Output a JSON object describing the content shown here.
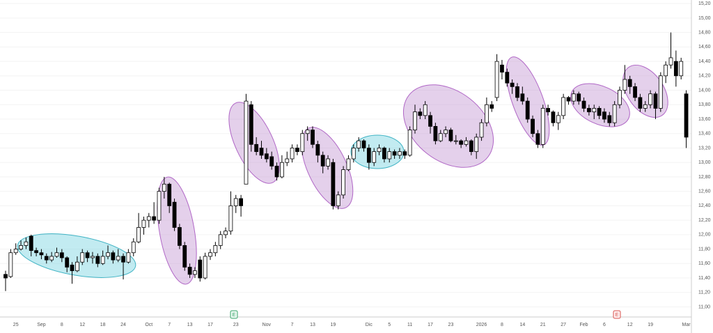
{
  "chart_data": {
    "type": "candlestick",
    "categories": [
      null,
      null,
      "25",
      null,
      null,
      null,
      null,
      "Sep",
      null,
      null,
      null,
      "8",
      null,
      null,
      null,
      "12",
      null,
      null,
      null,
      "18",
      null,
      null,
      null,
      "24",
      null,
      null,
      null,
      null,
      "Oct",
      null,
      null,
      null,
      "7",
      null,
      null,
      null,
      "13",
      null,
      null,
      null,
      "17",
      null,
      null,
      null,
      null,
      "23",
      null,
      null,
      null,
      null,
      null,
      "Nov",
      null,
      null,
      null,
      null,
      "7",
      null,
      null,
      null,
      "13",
      null,
      null,
      null,
      "19",
      null,
      null,
      null,
      null,
      null,
      null,
      "Dic",
      null,
      null,
      null,
      "5",
      null,
      null,
      null,
      "11",
      null,
      null,
      null,
      "17",
      null,
      null,
      null,
      "23",
      null,
      null,
      null,
      null,
      null,
      "2026",
      null,
      null,
      null,
      "8",
      null,
      null,
      null,
      "14",
      null,
      null,
      null,
      "21",
      null,
      null,
      null,
      "27",
      null,
      null,
      null,
      "Feb",
      null,
      null,
      null,
      "6",
      null,
      null,
      null,
      null,
      "12",
      null,
      null,
      null,
      "19",
      null,
      null,
      null,
      null,
      null,
      null,
      "Mar"
    ],
    "series": [
      {
        "up_color": "#ffffff",
        "down_color": "#000000",
        "border_color": "#000000",
        "values": [
          [
            11.45,
            11.5,
            11.22,
            11.4
          ],
          [
            11.42,
            11.8,
            11.4,
            11.75
          ],
          [
            11.75,
            11.88,
            11.72,
            11.8
          ],
          [
            11.8,
            11.92,
            11.78,
            11.85
          ],
          [
            11.85,
            11.96,
            11.8,
            11.9
          ],
          [
            11.98,
            12.0,
            11.7,
            11.78
          ],
          [
            11.78,
            11.82,
            11.7,
            11.75
          ],
          [
            11.75,
            11.8,
            11.66,
            11.72
          ],
          [
            11.7,
            11.74,
            11.6,
            11.65
          ],
          [
            11.65,
            11.76,
            11.62,
            11.7
          ],
          [
            11.7,
            11.82,
            11.68,
            11.75
          ],
          [
            11.75,
            11.8,
            11.62,
            11.68
          ],
          [
            11.68,
            11.7,
            11.48,
            11.55
          ],
          [
            11.58,
            11.62,
            11.32,
            11.5
          ],
          [
            11.5,
            11.7,
            11.48,
            11.62
          ],
          [
            11.62,
            11.8,
            11.58,
            11.75
          ],
          [
            11.75,
            11.78,
            11.62,
            11.68
          ],
          [
            11.68,
            11.76,
            11.6,
            11.7
          ],
          [
            11.7,
            11.74,
            11.55,
            11.6
          ],
          [
            11.6,
            11.78,
            11.58,
            11.7
          ],
          [
            11.7,
            11.85,
            11.66,
            11.75
          ],
          [
            11.75,
            11.78,
            11.6,
            11.65
          ],
          [
            11.65,
            11.8,
            11.62,
            11.7
          ],
          [
            11.7,
            11.74,
            11.38,
            11.62
          ],
          [
            11.62,
            11.8,
            11.6,
            11.75
          ],
          [
            11.75,
            11.95,
            11.7,
            11.9
          ],
          [
            11.9,
            12.3,
            11.88,
            12.1
          ],
          [
            12.1,
            12.25,
            12.0,
            12.2
          ],
          [
            12.2,
            12.3,
            12.1,
            12.25
          ],
          [
            12.25,
            12.45,
            12.15,
            12.2
          ],
          [
            12.2,
            12.65,
            12.15,
            12.6
          ],
          [
            12.6,
            12.8,
            12.5,
            12.7
          ],
          [
            12.7,
            12.72,
            12.3,
            12.4
          ],
          [
            12.45,
            12.5,
            12.05,
            12.1
          ],
          [
            12.1,
            12.15,
            11.8,
            11.85
          ],
          [
            11.85,
            11.9,
            11.5,
            11.55
          ],
          [
            11.55,
            11.6,
            11.4,
            11.45
          ],
          [
            11.45,
            11.55,
            11.4,
            11.5
          ],
          [
            11.65,
            11.7,
            11.35,
            11.4
          ],
          [
            11.4,
            11.75,
            11.38,
            11.7
          ],
          [
            11.7,
            11.8,
            11.65,
            11.75
          ],
          [
            11.75,
            11.9,
            11.7,
            11.85
          ],
          [
            11.85,
            12.05,
            11.8,
            12.0
          ],
          [
            12.0,
            12.1,
            11.95,
            12.05
          ],
          [
            12.05,
            12.6,
            12.0,
            12.4
          ],
          [
            12.4,
            12.55,
            12.3,
            12.5
          ],
          [
            12.5,
            12.55,
            12.25,
            12.4
          ],
          [
            12.7,
            13.95,
            12.7,
            13.85
          ],
          [
            13.8,
            13.85,
            13.15,
            13.25
          ],
          [
            13.25,
            13.35,
            13.1,
            13.15
          ],
          [
            13.2,
            13.3,
            13.05,
            13.1
          ],
          [
            13.12,
            13.2,
            13.0,
            13.05
          ],
          [
            13.08,
            13.15,
            12.9,
            12.95
          ],
          [
            12.95,
            13.0,
            12.75,
            12.8
          ],
          [
            12.8,
            13.1,
            12.78,
            13.0
          ],
          [
            13.0,
            13.15,
            12.95,
            13.05
          ],
          [
            13.05,
            13.25,
            13.0,
            13.2
          ],
          [
            13.2,
            13.25,
            13.1,
            13.15
          ],
          [
            13.15,
            13.45,
            13.1,
            13.4
          ],
          [
            13.4,
            13.5,
            13.3,
            13.45
          ],
          [
            13.45,
            13.5,
            13.2,
            13.25
          ],
          [
            13.25,
            13.3,
            13.0,
            13.1
          ],
          [
            13.1,
            13.15,
            12.85,
            12.95
          ],
          [
            12.95,
            13.1,
            12.9,
            13.05
          ],
          [
            13.0,
            13.05,
            12.35,
            12.4
          ],
          [
            12.4,
            12.6,
            12.35,
            12.55
          ],
          [
            12.55,
            12.95,
            12.5,
            12.9
          ],
          [
            12.9,
            13.1,
            12.88,
            13.05
          ],
          [
            13.05,
            13.25,
            13.0,
            13.2
          ],
          [
            13.2,
            13.35,
            13.15,
            13.3
          ],
          [
            13.3,
            13.32,
            13.15,
            13.2
          ],
          [
            13.2,
            13.25,
            12.9,
            13.0
          ],
          [
            13.0,
            13.2,
            12.95,
            13.15
          ],
          [
            13.15,
            13.25,
            13.1,
            13.2
          ],
          [
            13.2,
            13.22,
            13.0,
            13.05
          ],
          [
            13.05,
            13.2,
            13.0,
            13.15
          ],
          [
            13.15,
            13.18,
            13.05,
            13.1
          ],
          [
            13.1,
            13.2,
            13.05,
            13.15
          ],
          [
            13.15,
            13.18,
            13.05,
            13.1
          ],
          [
            13.1,
            13.5,
            13.08,
            13.45
          ],
          [
            13.45,
            13.8,
            13.4,
            13.7
          ],
          [
            13.7,
            13.75,
            13.6,
            13.65
          ],
          [
            13.65,
            13.85,
            13.6,
            13.8
          ],
          [
            13.65,
            13.7,
            13.4,
            13.5
          ],
          [
            13.5,
            13.55,
            13.25,
            13.3
          ],
          [
            13.3,
            13.45,
            13.28,
            13.4
          ],
          [
            13.4,
            13.5,
            13.35,
            13.45
          ],
          [
            13.45,
            13.48,
            13.28,
            13.3
          ],
          [
            13.3,
            13.38,
            13.25,
            13.3
          ],
          [
            13.3,
            13.32,
            13.2,
            13.25
          ],
          [
            13.25,
            13.35,
            13.22,
            13.3
          ],
          [
            13.3,
            13.32,
            13.1,
            13.15
          ],
          [
            13.15,
            13.4,
            13.05,
            13.35
          ],
          [
            13.35,
            13.6,
            13.3,
            13.55
          ],
          [
            13.55,
            13.9,
            13.5,
            13.8
          ],
          [
            13.8,
            13.85,
            13.7,
            13.75
          ],
          [
            13.9,
            14.5,
            13.85,
            14.4
          ],
          [
            14.35,
            14.42,
            14.15,
            14.25
          ],
          [
            14.25,
            14.3,
            14.05,
            14.1
          ],
          [
            14.1,
            14.15,
            13.95,
            14.05
          ],
          [
            14.05,
            14.1,
            13.85,
            13.9
          ],
          [
            13.95,
            14.05,
            13.8,
            13.85
          ],
          [
            13.85,
            13.9,
            13.55,
            13.6
          ],
          [
            13.6,
            13.65,
            13.35,
            13.4
          ],
          [
            13.4,
            13.45,
            13.2,
            13.25
          ],
          [
            13.25,
            13.8,
            13.2,
            13.75
          ],
          [
            13.75,
            13.8,
            13.65,
            13.7
          ],
          [
            13.7,
            13.72,
            13.5,
            13.55
          ],
          [
            13.55,
            13.7,
            13.45,
            13.65
          ],
          [
            13.65,
            13.95,
            13.6,
            13.9
          ],
          [
            13.9,
            13.92,
            13.8,
            13.85
          ],
          [
            13.85,
            14.0,
            13.8,
            13.95
          ],
          [
            13.95,
            13.98,
            13.8,
            13.85
          ],
          [
            13.85,
            13.9,
            13.7,
            13.75
          ],
          [
            13.75,
            13.8,
            13.65,
            13.7
          ],
          [
            13.7,
            13.8,
            13.6,
            13.75
          ],
          [
            13.75,
            13.78,
            13.6,
            13.65
          ],
          [
            13.7,
            13.75,
            13.55,
            13.6
          ],
          [
            13.65,
            13.7,
            13.5,
            13.55
          ],
          [
            13.55,
            13.85,
            13.5,
            13.8
          ],
          [
            13.8,
            14.05,
            13.75,
            14.0
          ],
          [
            14.0,
            14.35,
            13.95,
            14.15
          ],
          [
            14.15,
            14.2,
            13.95,
            14.05
          ],
          [
            14.05,
            14.1,
            13.85,
            13.9
          ],
          [
            13.9,
            13.95,
            13.7,
            13.75
          ],
          [
            13.75,
            13.85,
            13.7,
            13.8
          ],
          [
            13.8,
            14.0,
            13.75,
            13.95
          ],
          [
            13.95,
            13.98,
            13.6,
            13.75
          ],
          [
            13.75,
            14.25,
            13.7,
            14.2
          ],
          [
            14.2,
            14.4,
            14.1,
            14.35
          ],
          [
            14.35,
            14.8,
            14.3,
            14.45
          ],
          [
            14.4,
            14.55,
            14.05,
            14.2
          ],
          [
            14.2,
            14.45,
            14.15,
            14.4
          ],
          [
            13.95,
            14.0,
            13.2,
            13.35
          ]
        ]
      }
    ],
    "ylim": [
      10.86,
      15.25
    ],
    "yticks": [
      {
        "value": 11.0,
        "label": "11,00"
      },
      {
        "value": 11.2,
        "label": "11,20"
      },
      {
        "value": 11.4,
        "label": "11,40"
      },
      {
        "value": 11.6,
        "label": "11,60"
      },
      {
        "value": 11.8,
        "label": "11,80"
      },
      {
        "value": 12.0,
        "label": "12,00"
      },
      {
        "value": 12.2,
        "label": "12,20"
      },
      {
        "value": 12.4,
        "label": "12,40"
      },
      {
        "value": 12.6,
        "label": "12,60"
      },
      {
        "value": 12.8,
        "label": "12,80"
      },
      {
        "value": 13.0,
        "label": "13,00"
      },
      {
        "value": 13.2,
        "label": "13,20"
      },
      {
        "value": 13.4,
        "label": "13,40"
      },
      {
        "value": 13.6,
        "label": "13,60"
      },
      {
        "value": 13.8,
        "label": "13,80"
      },
      {
        "value": 14.0,
        "label": "14,00"
      },
      {
        "value": 14.2,
        "label": "14,20"
      },
      {
        "value": 14.4,
        "label": "14,40"
      },
      {
        "value": 14.6,
        "label": "14,60"
      },
      {
        "value": 14.8,
        "label": "14,80"
      },
      {
        "value": 15.0,
        "label": "15,00"
      },
      {
        "value": 15.2,
        "label": "15,20"
      }
    ],
    "grid": true,
    "earnings_markers": [
      "E",
      "E"
    ]
  }
}
